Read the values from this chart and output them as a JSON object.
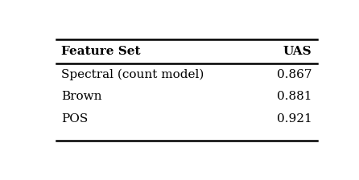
{
  "col_headers": [
    "Feature Set",
    "UAS"
  ],
  "rows": [
    [
      "Spectral (count model)",
      "0.867"
    ],
    [
      "Brown",
      "0.881"
    ],
    [
      "POS",
      "0.921"
    ]
  ],
  "background_color": "#ffffff",
  "font_size": 11,
  "header_font_size": 11
}
